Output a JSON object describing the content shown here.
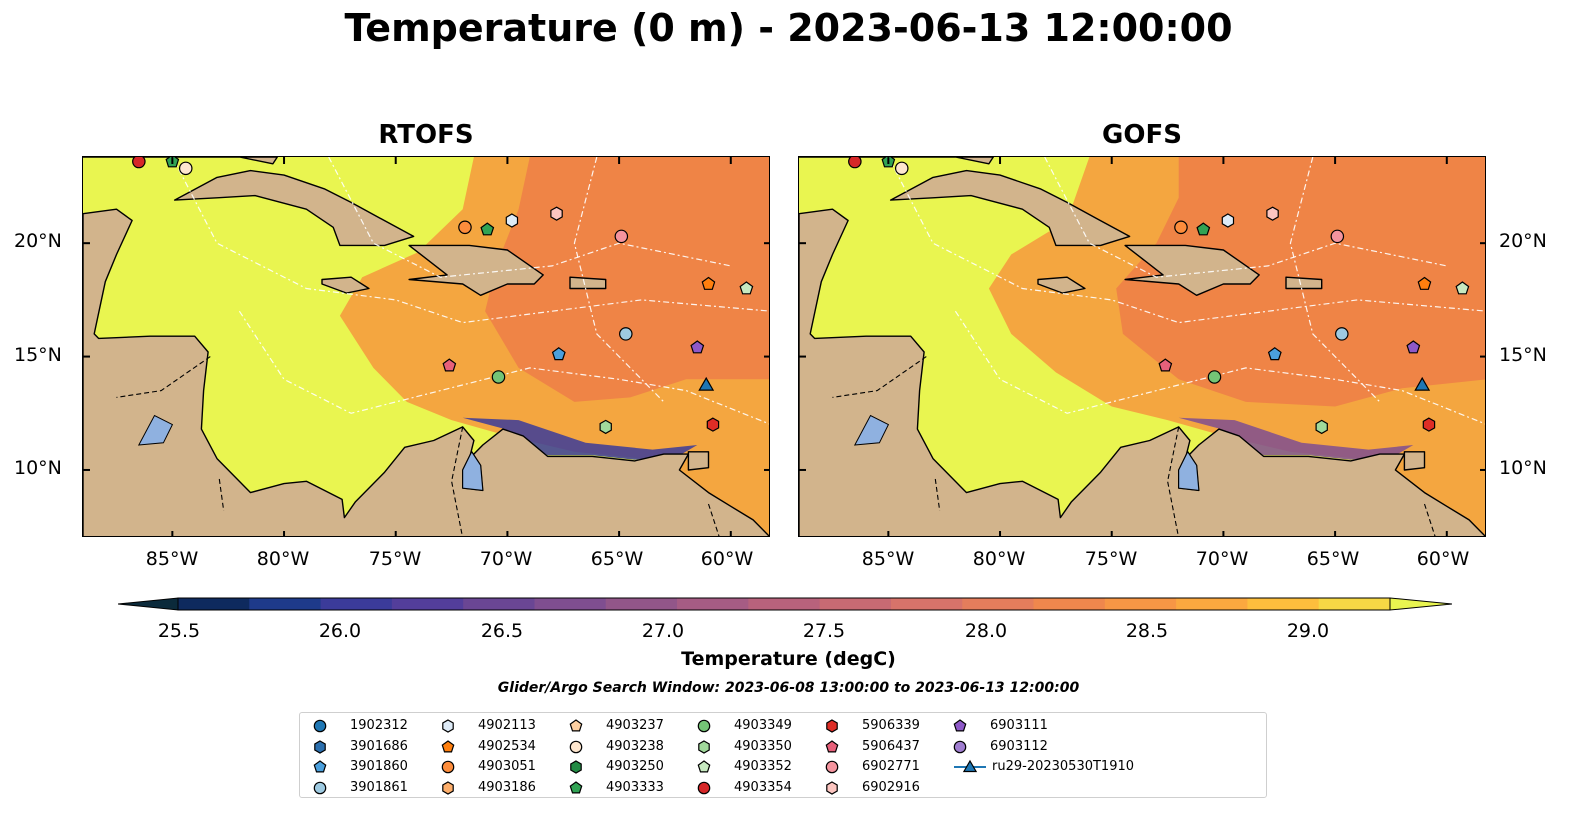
{
  "title": "Temperature (0 m) - 2023-06-13 12:00:00",
  "panels": [
    {
      "title": "RTOFS"
    },
    {
      "title": "GOFS"
    }
  ],
  "axes": {
    "lon_ticks": [
      "85°W",
      "80°W",
      "75°W",
      "70°W",
      "65°W",
      "60°W"
    ],
    "lat_ticks": [
      "20°N",
      "15°N",
      "10°N"
    ]
  },
  "colorbar": {
    "label": "Temperature (degC)",
    "ticks": [
      "25.5",
      "26.0",
      "26.5",
      "27.0",
      "27.5",
      "28.0",
      "28.5",
      "29.0"
    ],
    "colors": [
      "#0b2a3b",
      "#0e2a5e",
      "#1e3a8a",
      "#3b3b9a",
      "#533e9b",
      "#6a4694",
      "#7f4e90",
      "#925689",
      "#a65c84",
      "#b8627c",
      "#c86a73",
      "#d7736a",
      "#e47d5c",
      "#ef874d",
      "#f79645",
      "#fba83f",
      "#fdbe3d",
      "#f6d845",
      "#e9f550"
    ]
  },
  "search_window": "Glider/Argo Search Window: 2023-06-08 13:00:00 to 2023-06-13 12:00:00",
  "legend": [
    {
      "label": "1902312",
      "marker": "circle",
      "color": "#1f77b4"
    },
    {
      "label": "3901686",
      "marker": "hexagon",
      "color": "#2b6fae"
    },
    {
      "label": "3901860",
      "marker": "pentagon",
      "color": "#4a9fdc"
    },
    {
      "label": "3901861",
      "marker": "circle",
      "color": "#9ecae1"
    },
    {
      "label": "4902113",
      "marker": "hexagon",
      "color": "#deebf7"
    },
    {
      "label": "4902534",
      "marker": "pentagon",
      "color": "#ff7f0e"
    },
    {
      "label": "4903051",
      "marker": "circle",
      "color": "#fd8d3c"
    },
    {
      "label": "4903186",
      "marker": "hexagon",
      "color": "#fdae6b"
    },
    {
      "label": "4903237",
      "marker": "pentagon",
      "color": "#fdd0a2"
    },
    {
      "label": "4903238",
      "marker": "circle",
      "color": "#fee6ce"
    },
    {
      "label": "4903250",
      "marker": "hexagon",
      "color": "#238b45"
    },
    {
      "label": "4903333",
      "marker": "pentagon",
      "color": "#31a354"
    },
    {
      "label": "4903349",
      "marker": "circle",
      "color": "#74c476"
    },
    {
      "label": "4903350",
      "marker": "hexagon",
      "color": "#a1d99b"
    },
    {
      "label": "4903352",
      "marker": "pentagon",
      "color": "#c7e9c0"
    },
    {
      "label": "4903354",
      "marker": "circle",
      "color": "#d62728"
    },
    {
      "label": "5906339",
      "marker": "hexagon",
      "color": "#de2d26"
    },
    {
      "label": "5906437",
      "marker": "pentagon",
      "color": "#e7607a"
    },
    {
      "label": "6902771",
      "marker": "circle",
      "color": "#f4949e"
    },
    {
      "label": "6902916",
      "marker": "hexagon",
      "color": "#fcc5c0"
    },
    {
      "label": "6903111",
      "marker": "pentagon",
      "color": "#8e59c8"
    },
    {
      "label": "6903112",
      "marker": "circle",
      "color": "#a07ed0"
    },
    {
      "label": "ru29-20230530T1910",
      "marker": "triangle-line",
      "color": "#1f77b4"
    }
  ],
  "map_colors": {
    "ocean_warm": "#e9f550",
    "ocean_mid": "#f4a640",
    "ocean_hot": "#ef8446",
    "land": "#d2b48c",
    "lake": "#8fb1e0",
    "coast": "#000000"
  },
  "floats": [
    {
      "id": "4903354",
      "lon": -86.5,
      "lat": 23.6
    },
    {
      "id": "4903333",
      "lon": -85.0,
      "lat": 23.6
    },
    {
      "id": "4903238",
      "lon": -84.4,
      "lat": 23.3
    },
    {
      "id": "4903051",
      "lon": -71.9,
      "lat": 20.7
    },
    {
      "id": "4903333",
      "lon": -70.9,
      "lat": 20.6
    },
    {
      "id": "4902113",
      "lon": -69.8,
      "lat": 21.0
    },
    {
      "id": "6902916",
      "lon": -67.8,
      "lat": 21.3
    },
    {
      "id": "6902771",
      "lon": -64.9,
      "lat": 20.3
    },
    {
      "id": "4902534",
      "lon": -61.0,
      "lat": 18.2
    },
    {
      "id": "4903352",
      "lon": -59.3,
      "lat": 18.0
    },
    {
      "id": "3901861",
      "lon": -64.7,
      "lat": 16.0
    },
    {
      "id": "3901860",
      "lon": -67.7,
      "lat": 15.1
    },
    {
      "id": "6903111",
      "lon": -61.5,
      "lat": 15.4
    },
    {
      "id": "5906437",
      "lon": -72.6,
      "lat": 14.6
    },
    {
      "id": "4903349",
      "lon": -70.4,
      "lat": 14.1
    },
    {
      "id": "ru29-20230530T1910",
      "lon": -61.1,
      "lat": 13.7
    },
    {
      "id": "4903350",
      "lon": -65.6,
      "lat": 11.9
    },
    {
      "id": "5906339",
      "lon": -60.8,
      "lat": 12.0
    }
  ]
}
